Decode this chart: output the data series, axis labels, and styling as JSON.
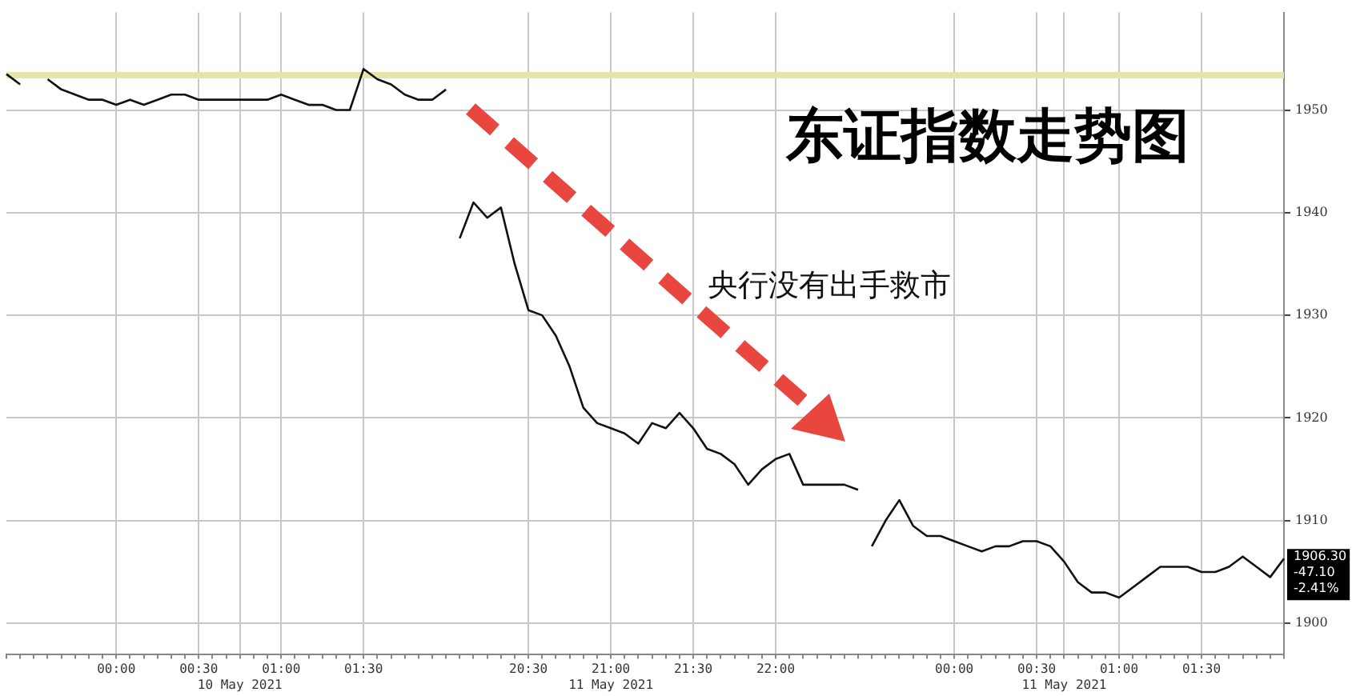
{
  "chart_data": {
    "type": "line",
    "title": "东证指数走势图",
    "categories": [
      null,
      null,
      null,
      null,
      null,
      null,
      null,
      null,
      "00:00",
      null,
      null,
      null,
      null,
      null,
      "00:30",
      null,
      null,
      "\n10 May 2021",
      null,
      null,
      "01:00",
      null,
      null,
      null,
      null,
      null,
      "01:30",
      null,
      null,
      null,
      null,
      null,
      null,
      null,
      null,
      null,
      null,
      null,
      "20:30",
      null,
      null,
      null,
      null,
      null,
      "21:00\n11 May 2021",
      null,
      null,
      null,
      null,
      null,
      "21:30",
      null,
      null,
      null,
      null,
      null,
      "22:00",
      null,
      null,
      null,
      null,
      null,
      null,
      null,
      null,
      null,
      null,
      null,
      null,
      "00:00",
      null,
      null,
      null,
      null,
      null,
      "00:30",
      null,
      "\n11 May 2021",
      null,
      null,
      null,
      "01:00",
      null,
      null,
      null,
      null,
      null,
      "01:30",
      null,
      null,
      null,
      null,
      null,
      null
    ],
    "series": [
      {
        "color": "#111111",
        "values": [
          1953.5,
          1952.5,
          null,
          null,
          null,
          null,
          null,
          null,
          null,
          null,
          null,
          null,
          null,
          null,
          null,
          null,
          null,
          null,
          null,
          null,
          null,
          null,
          null,
          null,
          null,
          null,
          null,
          null,
          null,
          null,
          null,
          null,
          null,
          null,
          null,
          null,
          null,
          null,
          null,
          null,
          null,
          null,
          null,
          null,
          null,
          null,
          null,
          null,
          null,
          null,
          null,
          null,
          null,
          null,
          null,
          null,
          null,
          null,
          null,
          null,
          null,
          null,
          null,
          null,
          null,
          null,
          null,
          null,
          null,
          null,
          null,
          null,
          null,
          null,
          null,
          null,
          null,
          null,
          null,
          null,
          null,
          null,
          null,
          null,
          null,
          null,
          null,
          null,
          null,
          null,
          null,
          null,
          null,
          null
        ]
      },
      {
        "color": "#111111",
        "values": [
          null,
          null,
          null,
          1953,
          1952,
          1951.5,
          1951,
          1951,
          1950.5,
          1951,
          1950.5,
          1951,
          1951.5,
          1951.5,
          1951,
          1951,
          1951,
          1951,
          1951,
          1951,
          1951.5,
          1951,
          1950.5,
          1950.5,
          1950,
          1950,
          1954,
          1953,
          1952.5,
          1951.5,
          1951,
          1951,
          1952,
          null,
          null,
          null,
          null,
          null,
          null,
          null,
          null,
          null,
          null,
          null,
          null,
          null,
          null,
          null,
          null,
          null,
          null,
          null,
          null,
          null,
          null,
          null,
          null,
          null,
          null,
          null,
          null,
          null,
          null,
          null,
          null,
          null,
          null,
          null,
          null,
          null,
          null,
          null,
          null,
          null,
          null,
          null,
          null,
          null,
          null,
          null,
          null,
          null,
          null,
          null,
          null,
          null,
          null,
          null,
          null,
          null,
          null,
          null,
          null,
          null
        ]
      },
      {
        "color": "#111111",
        "values": [
          null,
          null,
          null,
          null,
          null,
          null,
          null,
          null,
          null,
          null,
          null,
          null,
          null,
          null,
          null,
          null,
          null,
          null,
          null,
          null,
          null,
          null,
          null,
          null,
          null,
          null,
          null,
          null,
          null,
          null,
          null,
          null,
          null,
          1937.5,
          1941,
          1939.5,
          1940.5,
          1935,
          1930.5,
          1930,
          1928,
          1925,
          1921,
          1919.5,
          1919,
          1918.5,
          1917.5,
          1919.5,
          1919,
          1920.5,
          1919,
          1917,
          1916.5,
          1915.5,
          1913.5,
          1915,
          1916,
          1916.5,
          1913.5,
          1913.5,
          1913.5,
          1913.5,
          1913,
          null,
          null,
          null,
          null,
          null,
          null,
          null,
          null,
          null,
          null,
          null,
          null,
          null,
          null,
          null,
          null,
          null,
          null,
          null,
          null,
          null,
          null,
          null,
          null,
          null,
          null,
          null,
          null,
          null,
          null,
          null
        ]
      },
      {
        "color": "#111111",
        "values": [
          null,
          null,
          null,
          null,
          null,
          null,
          null,
          null,
          null,
          null,
          null,
          null,
          null,
          null,
          null,
          null,
          null,
          null,
          null,
          null,
          null,
          null,
          null,
          null,
          null,
          null,
          null,
          null,
          null,
          null,
          null,
          null,
          null,
          null,
          null,
          null,
          null,
          null,
          null,
          null,
          null,
          null,
          null,
          null,
          null,
          null,
          null,
          null,
          null,
          null,
          null,
          null,
          null,
          null,
          null,
          null,
          null,
          null,
          null,
          null,
          null,
          null,
          null,
          1907.5,
          1910,
          1912,
          1909.5,
          1908.5,
          1908.5,
          1908,
          1907.5,
          1907,
          1907.5,
          1907.5,
          1908,
          1908,
          1907.5,
          1906,
          1904,
          1903,
          1903,
          1902.5,
          1903.5,
          1904.5,
          1905.5,
          1905.5,
          1905.5,
          1905,
          1905,
          1905.5,
          1906.5,
          1905.5,
          1904.5,
          1906.3
        ]
      }
    ],
    "ylim": [
      1897,
      1959.5
    ],
    "yticks": [
      1900,
      1910,
      1920,
      1930,
      1940,
      1950
    ],
    "ref_lines": [
      {
        "axis": "y",
        "value": 1953.4,
        "color": "#e6e4a8"
      }
    ],
    "annotations": [
      "央行没有出手救市",
      "1906.30\n-47.10\n-2.41%"
    ],
    "grid": true,
    "legend": false,
    "marker": "none"
  }
}
